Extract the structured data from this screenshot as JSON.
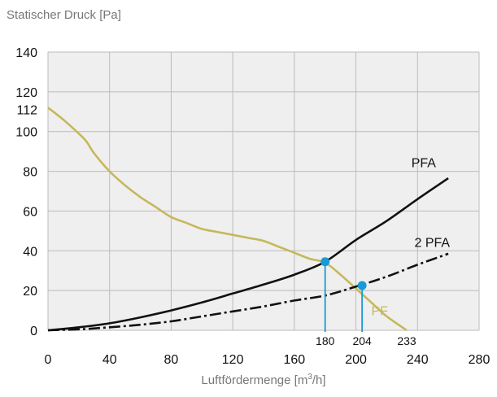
{
  "chart_data": {
    "type": "line",
    "ylabel": "Statischer Druck [Pa]",
    "xlabel_base": "Luftfördermenge [m",
    "xlabel_sup": "3",
    "xlabel_tail": "/h]",
    "xlim": [
      0,
      280
    ],
    "ylim": [
      0,
      140
    ],
    "x_ticks": [
      0,
      40,
      80,
      120,
      160,
      200,
      240,
      280
    ],
    "y_ticks": [
      0,
      20,
      40,
      60,
      80,
      100,
      120,
      140
    ],
    "extra_y_tick": 112,
    "grid": true,
    "series": [
      {
        "name": "PF",
        "color": "#c6b85c",
        "style": "solid",
        "x": [
          0,
          10,
          20,
          25,
          30,
          40,
          50,
          60,
          70,
          80,
          90,
          100,
          110,
          120,
          130,
          140,
          150,
          160,
          170,
          180,
          190,
          200,
          210,
          220,
          233
        ],
        "y": [
          112,
          106,
          99,
          95,
          89,
          80,
          73,
          67,
          62,
          57,
          54,
          51,
          49.5,
          48,
          46.5,
          45,
          42,
          39,
          36,
          34,
          28,
          21,
          14,
          7,
          0
        ]
      },
      {
        "name": "PFA",
        "color": "#111111",
        "style": "solid",
        "x": [
          0,
          20,
          40,
          60,
          80,
          100,
          120,
          140,
          160,
          180,
          200,
          220,
          240,
          260
        ],
        "y": [
          0,
          1.5,
          3.5,
          6.5,
          10,
          14,
          18.5,
          23,
          28,
          34.5,
          45.5,
          55,
          66,
          76.5
        ]
      },
      {
        "name": "2 PFA",
        "color": "#111111",
        "style": "dashdot",
        "x": [
          0,
          20,
          40,
          60,
          80,
          100,
          120,
          140,
          160,
          180,
          200,
          220,
          240,
          260
        ],
        "y": [
          0,
          0.5,
          1.5,
          2.8,
          4.5,
          7,
          9.5,
          12,
          15,
          17.5,
          22,
          27,
          33,
          38.5
        ]
      }
    ],
    "operating_points": [
      {
        "x": 180,
        "y": 34.5,
        "label": "180"
      },
      {
        "x": 204,
        "y": 22.5,
        "label": "204"
      }
    ],
    "end_annotation": {
      "x": 233,
      "label": "233"
    },
    "marker_color": "#1a9ad6",
    "grid_color": "#bbbbbb",
    "plot_bg": "#efefef"
  }
}
